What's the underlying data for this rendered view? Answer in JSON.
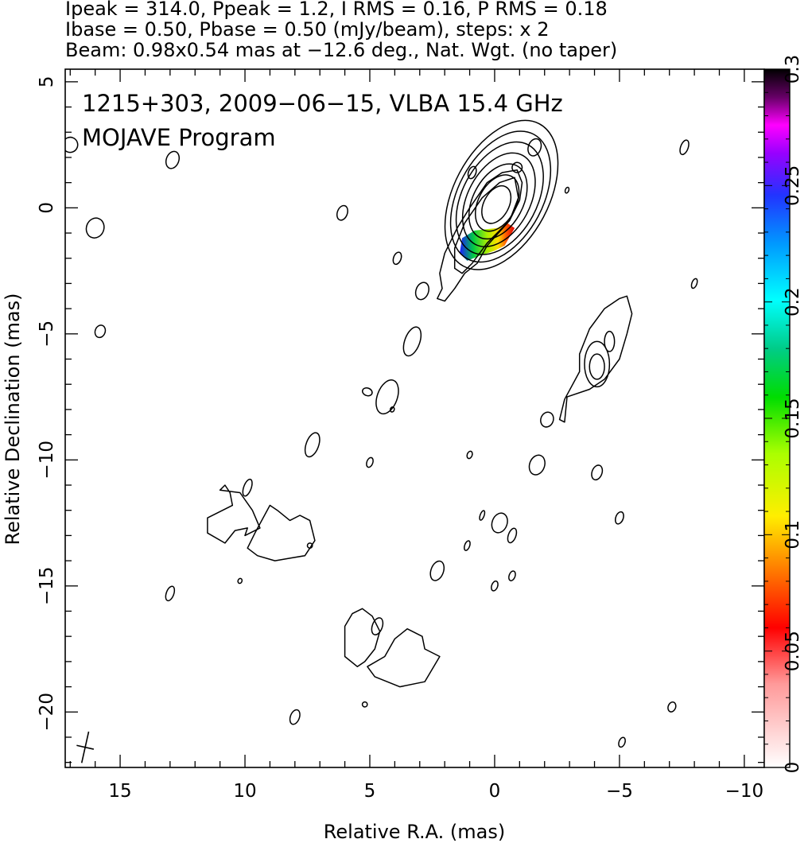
{
  "header": {
    "line1": "Ipeak = 314.0, Ppeak = 1.2, I RMS = 0.16, P RMS = 0.18",
    "line2": "Ibase = 0.50, Pbase = 0.50 (mJy/beam), steps: x 2",
    "line3": "Beam: 0.98x0.54 mas at −12.6 deg., Nat. Wgt. (no taper)"
  },
  "chart_data": {
    "type": "contour",
    "title_line1": "1215+303, 2009−06−15, VLBA 15.4 GHz",
    "title_line2": "MOJAVE Program",
    "xlabel": "Relative R.A. (mas)",
    "ylabel": "Relative Declination (mas)",
    "xlim": [
      17.2,
      -10.8
    ],
    "ylim": [
      -22.2,
      5.5
    ],
    "x_ticks": [
      {
        "value": 15,
        "label": "15"
      },
      {
        "value": 10,
        "label": "10"
      },
      {
        "value": 5,
        "label": "5"
      },
      {
        "value": 0,
        "label": "0"
      },
      {
        "value": -5,
        "label": "−5"
      },
      {
        "value": -10,
        "label": "−10"
      }
    ],
    "y_ticks": [
      {
        "value": 5,
        "label": "5"
      },
      {
        "value": 0,
        "label": "0"
      },
      {
        "value": -5,
        "label": "−5"
      },
      {
        "value": -10,
        "label": "−10"
      },
      {
        "value": -15,
        "label": "−15"
      },
      {
        "value": -20,
        "label": "−20"
      }
    ],
    "colorbar": {
      "range": [
        0,
        0.3
      ],
      "ticks": [
        {
          "value": 0,
          "label": "0"
        },
        {
          "value": 0.05,
          "label": "0.05"
        },
        {
          "value": 0.1,
          "label": "0.1"
        },
        {
          "value": 0.15,
          "label": "0.15"
        },
        {
          "value": 0.2,
          "label": "0.2"
        },
        {
          "value": 0.25,
          "label": "0.25"
        },
        {
          "value": 0.3,
          "label": "0.3"
        }
      ]
    },
    "core": {
      "x": 0,
      "y": 0
    },
    "core_contours": [
      {
        "rx": 0.5,
        "ry": 0.8
      },
      {
        "rx": 0.75,
        "ry": 1.2
      },
      {
        "rx": 1.0,
        "ry": 1.6
      },
      {
        "rx": 1.25,
        "ry": 2.0
      },
      {
        "rx": 1.5,
        "ry": 2.4
      },
      {
        "rx": 1.7,
        "ry": 2.8
      },
      {
        "rx": 1.9,
        "ry": 3.2
      }
    ],
    "jet_outer_contours": [
      [
        [
          -0.9,
          1.5
        ],
        [
          -0.3,
          1.4
        ],
        [
          0.3,
          1.0
        ],
        [
          1.0,
          0.0
        ],
        [
          1.5,
          -0.8
        ],
        [
          2.0,
          -1.8
        ],
        [
          2.2,
          -2.6
        ],
        [
          2.1,
          -3.2
        ],
        [
          2.3,
          -3.6
        ],
        [
          2.0,
          -3.7
        ],
        [
          1.6,
          -3.2
        ],
        [
          1.2,
          -2.6
        ],
        [
          0.7,
          -2.2
        ],
        [
          0.3,
          -1.5
        ],
        [
          -0.6,
          -0.5
        ],
        [
          -1.0,
          0.3
        ],
        [
          -1.1,
          1.0
        ],
        [
          -0.9,
          1.5
        ]
      ],
      [
        [
          -0.8,
          1.2
        ],
        [
          -0.2,
          1.0
        ],
        [
          0.5,
          0.4
        ],
        [
          1.2,
          -0.6
        ],
        [
          1.6,
          -1.6
        ],
        [
          1.6,
          -2.4
        ],
        [
          1.3,
          -2.6
        ],
        [
          0.9,
          -2.2
        ],
        [
          0.3,
          -1.4
        ],
        [
          -0.6,
          -0.5
        ],
        [
          -0.95,
          0.4
        ],
        [
          -0.8,
          1.2
        ]
      ]
    ],
    "islands": [
      {
        "x": 16.0,
        "y": -0.8,
        "rx": 0.35,
        "ry": 0.4
      },
      {
        "x": 17.0,
        "y": 2.5,
        "rx": 0.3,
        "ry": 0.3
      },
      {
        "x": 12.9,
        "y": 1.9,
        "rx": 0.25,
        "ry": 0.35
      },
      {
        "x": 15.8,
        "y": -4.9,
        "rx": 0.2,
        "ry": 0.25
      },
      {
        "x": 6.1,
        "y": -0.2,
        "rx": 0.2,
        "ry": 0.3
      },
      {
        "x": 3.9,
        "y": -2.0,
        "rx": 0.15,
        "ry": 0.25
      },
      {
        "x": 2.9,
        "y": -3.3,
        "rx": 0.25,
        "ry": 0.35
      },
      {
        "x": 0.9,
        "y": 1.4,
        "rx": 0.15,
        "ry": 0.25
      },
      {
        "x": -1.6,
        "y": 2.4,
        "rx": 0.25,
        "ry": 0.35
      },
      {
        "x": -0.9,
        "y": 1.6,
        "rx": 0.2,
        "ry": 0.2
      },
      {
        "x": -2.9,
        "y": 0.7,
        "rx": 0.07,
        "ry": 0.12
      },
      {
        "x": -7.6,
        "y": 2.4,
        "rx": 0.15,
        "ry": 0.3
      },
      {
        "x": -8.0,
        "y": -3.0,
        "rx": 0.1,
        "ry": 0.2
      },
      {
        "x": 3.3,
        "y": -5.3,
        "rx": 0.3,
        "ry": 0.6
      },
      {
        "x": 4.3,
        "y": -7.5,
        "rx": 0.4,
        "ry": 0.7
      },
      {
        "x": 5.1,
        "y": -7.3,
        "rx": 0.2,
        "ry": 0.15
      },
      {
        "x": 7.3,
        "y": -9.4,
        "rx": 0.25,
        "ry": 0.5
      },
      {
        "x": 5.0,
        "y": -10.1,
        "rx": 0.12,
        "ry": 0.2
      },
      {
        "x": 1.0,
        "y": -9.8,
        "rx": 0.1,
        "ry": 0.15
      },
      {
        "x": -2.1,
        "y": -8.4,
        "rx": 0.25,
        "ry": 0.3
      },
      {
        "x": -1.7,
        "y": -10.2,
        "rx": 0.3,
        "ry": 0.4
      },
      {
        "x": -4.1,
        "y": -10.5,
        "rx": 0.2,
        "ry": 0.3
      },
      {
        "x": -5.0,
        "y": -12.3,
        "rx": 0.15,
        "ry": 0.25
      },
      {
        "x": 9.9,
        "y": -11.1,
        "rx": 0.15,
        "ry": 0.35
      },
      {
        "x": 7.4,
        "y": -13.4,
        "rx": 0.1,
        "ry": 0.1
      },
      {
        "x": 10.2,
        "y": -14.8,
        "rx": 0.08,
        "ry": 0.1
      },
      {
        "x": 13.0,
        "y": -15.3,
        "rx": 0.15,
        "ry": 0.3
      },
      {
        "x": 2.3,
        "y": -14.4,
        "rx": 0.25,
        "ry": 0.4
      },
      {
        "x": 1.1,
        "y": -13.4,
        "rx": 0.1,
        "ry": 0.2
      },
      {
        "x": 0.5,
        "y": -12.2,
        "rx": 0.08,
        "ry": 0.2
      },
      {
        "x": -0.2,
        "y": -12.5,
        "rx": 0.3,
        "ry": 0.4
      },
      {
        "x": -0.7,
        "y": -13.0,
        "rx": 0.15,
        "ry": 0.3
      },
      {
        "x": 0.0,
        "y": -15.0,
        "rx": 0.12,
        "ry": 0.2
      },
      {
        "x": -0.7,
        "y": -14.6,
        "rx": 0.12,
        "ry": 0.2
      },
      {
        "x": 4.7,
        "y": -16.6,
        "rx": 0.2,
        "ry": 0.35
      },
      {
        "x": 5.2,
        "y": -19.7,
        "rx": 0.1,
        "ry": 0.1
      },
      {
        "x": 8.0,
        "y": -20.2,
        "rx": 0.18,
        "ry": 0.3
      },
      {
        "x": -7.1,
        "y": -19.8,
        "rx": 0.15,
        "ry": 0.2
      },
      {
        "x": -5.1,
        "y": -21.2,
        "rx": 0.12,
        "ry": 0.2
      },
      {
        "x": 4.1,
        "y": -8.0,
        "rx": 0.08,
        "ry": 0.1
      }
    ],
    "blobs": [
      [
        [
          11.0,
          -11.2
        ],
        [
          10.8,
          -11.0
        ],
        [
          10.6,
          -11.3
        ],
        [
          10.5,
          -11.8
        ],
        [
          11.5,
          -12.3
        ],
        [
          11.5,
          -12.9
        ],
        [
          10.8,
          -13.3
        ],
        [
          10.4,
          -12.8
        ],
        [
          9.9,
          -12.7
        ],
        [
          10.0,
          -13.0
        ],
        [
          9.4,
          -12.7
        ],
        [
          9.7,
          -12.0
        ],
        [
          10.2,
          -11.3
        ],
        [
          11.0,
          -11.2
        ]
      ],
      [
        [
          9.0,
          -11.8
        ],
        [
          8.7,
          -12.0
        ],
        [
          8.2,
          -12.4
        ],
        [
          7.8,
          -12.2
        ],
        [
          7.4,
          -12.4
        ],
        [
          7.2,
          -13.2
        ],
        [
          7.6,
          -13.8
        ],
        [
          8.2,
          -13.9
        ],
        [
          8.8,
          -14.0
        ],
        [
          9.5,
          -13.8
        ],
        [
          9.9,
          -13.5
        ],
        [
          9.6,
          -12.9
        ],
        [
          9.0,
          -11.8
        ]
      ],
      [
        [
          5.3,
          -15.9
        ],
        [
          5.7,
          -16.1
        ],
        [
          6.0,
          -16.6
        ],
        [
          6.0,
          -17.8
        ],
        [
          5.5,
          -18.2
        ],
        [
          5.2,
          -18.0
        ],
        [
          4.8,
          -17.5
        ],
        [
          4.6,
          -16.8
        ],
        [
          4.9,
          -16.2
        ],
        [
          5.3,
          -15.9
        ]
      ],
      [
        [
          3.5,
          -16.7
        ],
        [
          2.9,
          -17.0
        ],
        [
          2.8,
          -17.5
        ],
        [
          2.2,
          -17.8
        ],
        [
          2.8,
          -18.8
        ],
        [
          3.8,
          -19.0
        ],
        [
          4.8,
          -18.6
        ],
        [
          5.1,
          -18.2
        ],
        [
          4.4,
          -17.8
        ],
        [
          4.0,
          -17.1
        ],
        [
          3.5,
          -16.7
        ]
      ],
      [
        [
          -5.3,
          -3.5
        ],
        [
          -5.5,
          -4.2
        ],
        [
          -5.3,
          -5.0
        ],
        [
          -5.0,
          -6.0
        ],
        [
          -4.4,
          -6.8
        ],
        [
          -3.8,
          -7.2
        ],
        [
          -2.9,
          -7.5
        ],
        [
          -2.8,
          -8.5
        ],
        [
          -2.6,
          -8.4
        ],
        [
          -2.8,
          -7.6
        ],
        [
          -3.4,
          -6.5
        ],
        [
          -3.4,
          -5.8
        ],
        [
          -3.8,
          -4.8
        ],
        [
          -4.4,
          -4.0
        ],
        [
          -5.0,
          -3.6
        ],
        [
          -5.3,
          -3.5
        ]
      ]
    ],
    "inner_blob_contours": [
      {
        "x": -4.1,
        "y": -6.2,
        "rx": 0.5,
        "ry": 0.9
      },
      {
        "x": -4.1,
        "y": -6.3,
        "rx": 0.3,
        "ry": 0.5
      },
      {
        "x": -4.6,
        "y": -5.3,
        "rx": 0.2,
        "ry": 0.4
      }
    ],
    "polarization_color": {
      "patch": [
        [
          -0.8,
          -0.8
        ],
        [
          -0.5,
          -0.6
        ],
        [
          -0.1,
          -0.8
        ],
        [
          0.8,
          -0.9
        ],
        [
          1.3,
          -1.2
        ],
        [
          1.4,
          -1.8
        ],
        [
          1.1,
          -2.1
        ],
        [
          0.6,
          -1.9
        ],
        [
          0.0,
          -1.7
        ],
        [
          -0.4,
          -1.5
        ],
        [
          -0.8,
          -0.8
        ]
      ]
    },
    "beam": {
      "x": 16.4,
      "y": -21.4,
      "major": 0.98,
      "minor": 0.54,
      "pa": -12.6
    }
  }
}
